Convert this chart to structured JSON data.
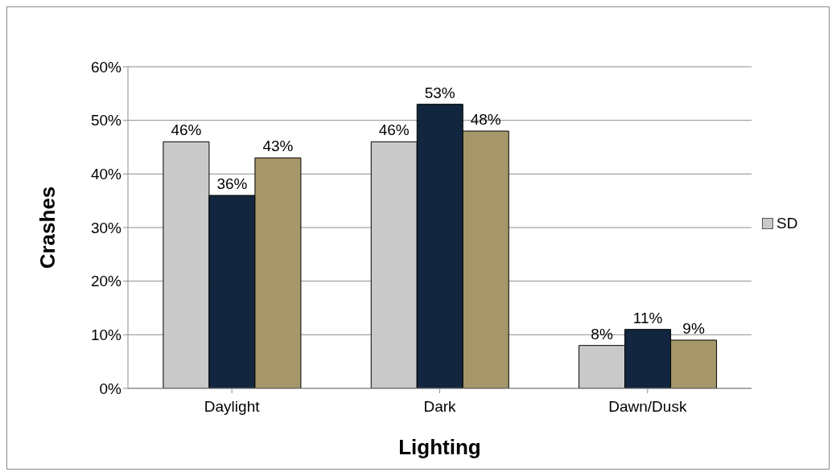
{
  "chart_data": {
    "type": "bar",
    "xlabel": "Lighting",
    "ylabel": "Crashes",
    "categories": [
      "Daylight",
      "Dark",
      "Dawn/Dusk"
    ],
    "series": [
      {
        "name": "SD",
        "color": "#c9c9c9",
        "values": [
          46,
          46,
          8
        ],
        "value_labels": [
          "46%",
          "46%",
          "8%"
        ]
      },
      {
        "color": "#13263f",
        "values": [
          36,
          53,
          11
        ],
        "value_labels": [
          "36%",
          "53%",
          "11%"
        ]
      },
      {
        "color": "#a6976a",
        "values": [
          43,
          48,
          9
        ],
        "value_labels": [
          "43%",
          "48%",
          "9%"
        ]
      }
    ],
    "ylim": [
      0,
      60
    ],
    "yticks": [
      {
        "value": 0,
        "label": "0%"
      },
      {
        "value": 10,
        "label": "10%"
      },
      {
        "value": 20,
        "label": "20%"
      },
      {
        "value": 30,
        "label": "30%"
      },
      {
        "value": 40,
        "label": "40%"
      },
      {
        "value": 50,
        "label": "50%"
      },
      {
        "value": 60,
        "label": "60%"
      }
    ],
    "grid": "y",
    "legend": "right"
  }
}
